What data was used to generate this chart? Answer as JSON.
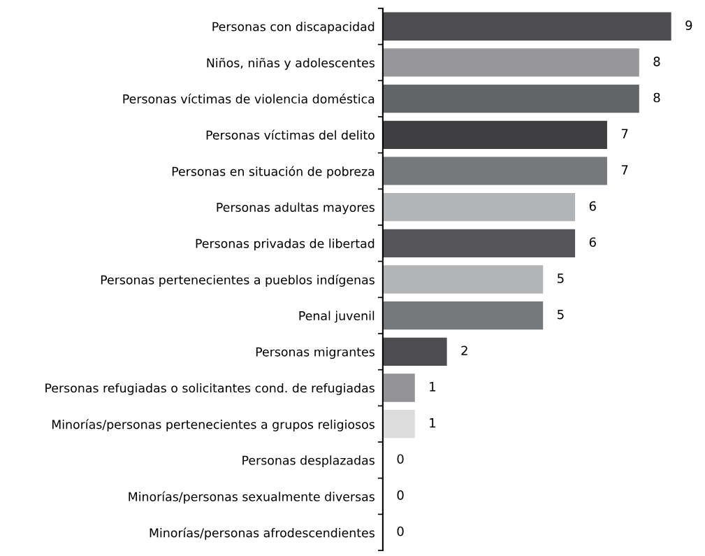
{
  "chart_data": {
    "type": "bar",
    "orientation": "horizontal",
    "data_labels": true,
    "legend": false,
    "grid": false,
    "categories": [
      "Personas con discapacidad",
      "Niños, niñas y adolescentes",
      "Personas víctimas de violencia doméstica",
      "Personas víctimas del delito",
      "Personas en situación de pobreza",
      "Personas adultas mayores",
      "Personas privadas de libertad",
      "Personas pertenecientes a pueblos indígenas",
      "Penal juvenil",
      "Personas migrantes",
      "Personas refugiadas o solicitantes cond. de refugiadas",
      "Minorías/personas pertenecientes a grupos religiosos",
      "Personas desplazadas",
      "Minorías/personas sexualmente diversas",
      "Minorías/personas afrodescendientes"
    ],
    "values": [
      9,
      8,
      8,
      7,
      7,
      6,
      6,
      5,
      5,
      2,
      1,
      1,
      0,
      0,
      0
    ],
    "colors": [
      "#4d4d4f",
      "#97979a",
      "#636466",
      "#3f3f41",
      "#77787b",
      "#b2b4b6",
      "#555557",
      "#b2b4b6",
      "#77787b",
      "#4d4d4f",
      "#939396",
      "#dcdcdd",
      "#a7a8aa",
      "#d1d2d3",
      "#c0c1c3"
    ]
  }
}
